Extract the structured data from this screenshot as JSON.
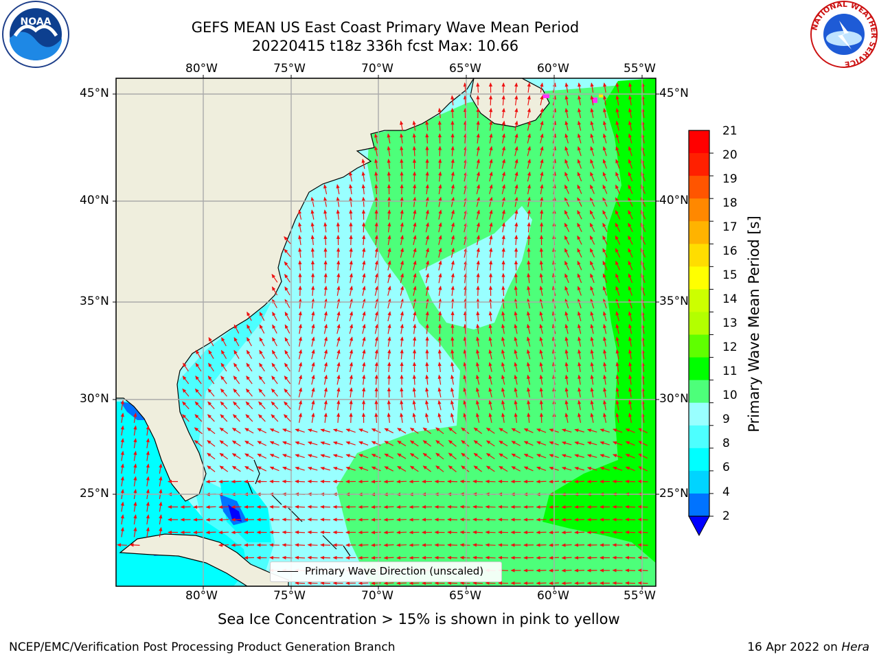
{
  "title_line1": "GEFS MEAN US East Coast Primary Wave Mean Period",
  "title_line2": "20220415 t18z 336h fcst   Max: 10.66",
  "lon_ticks": [
    "80°W",
    "75°W",
    "70°W",
    "65°W",
    "60°W",
    "55°W"
  ],
  "lat_ticks": [
    "45°N",
    "40°N",
    "35°N",
    "30°N",
    "25°N"
  ],
  "legend_text": "Primary Wave Direction (unscaled)",
  "colorbar": {
    "label": "Primary Wave Mean Period [s]",
    "ticks": [
      "2",
      "4",
      "6",
      "8",
      "9",
      "10",
      "11",
      "12",
      "13",
      "14",
      "15",
      "16",
      "17",
      "18",
      "19",
      "20",
      "21"
    ],
    "colors": [
      "#0000ff",
      "#0073ff",
      "#00d4ff",
      "#00ffff",
      "#4dffff",
      "#99ffff",
      "#4dff7a",
      "#00ff00",
      "#5fff00",
      "#b3ff00",
      "#ccff00",
      "#ffff00",
      "#ffdd00",
      "#ffb300",
      "#ff8800",
      "#ff5500",
      "#ff2000",
      "#ff0000"
    ]
  },
  "caption": "Sea Ice Concentration > 15% is shown in pink to yellow",
  "footer_left": "NCEP/EMC/Verification Post Processing Product Generation Branch",
  "footer_right_date": "16 Apr 2022 on ",
  "footer_right_host": "Hera",
  "logos": {
    "left": "NOAA",
    "right_ring": "NATIONAL WEATHER SERVICE"
  },
  "map_colors": {
    "land": "#efeedd",
    "arrows": "#ee1111",
    "grid": "#aaaaaa"
  }
}
